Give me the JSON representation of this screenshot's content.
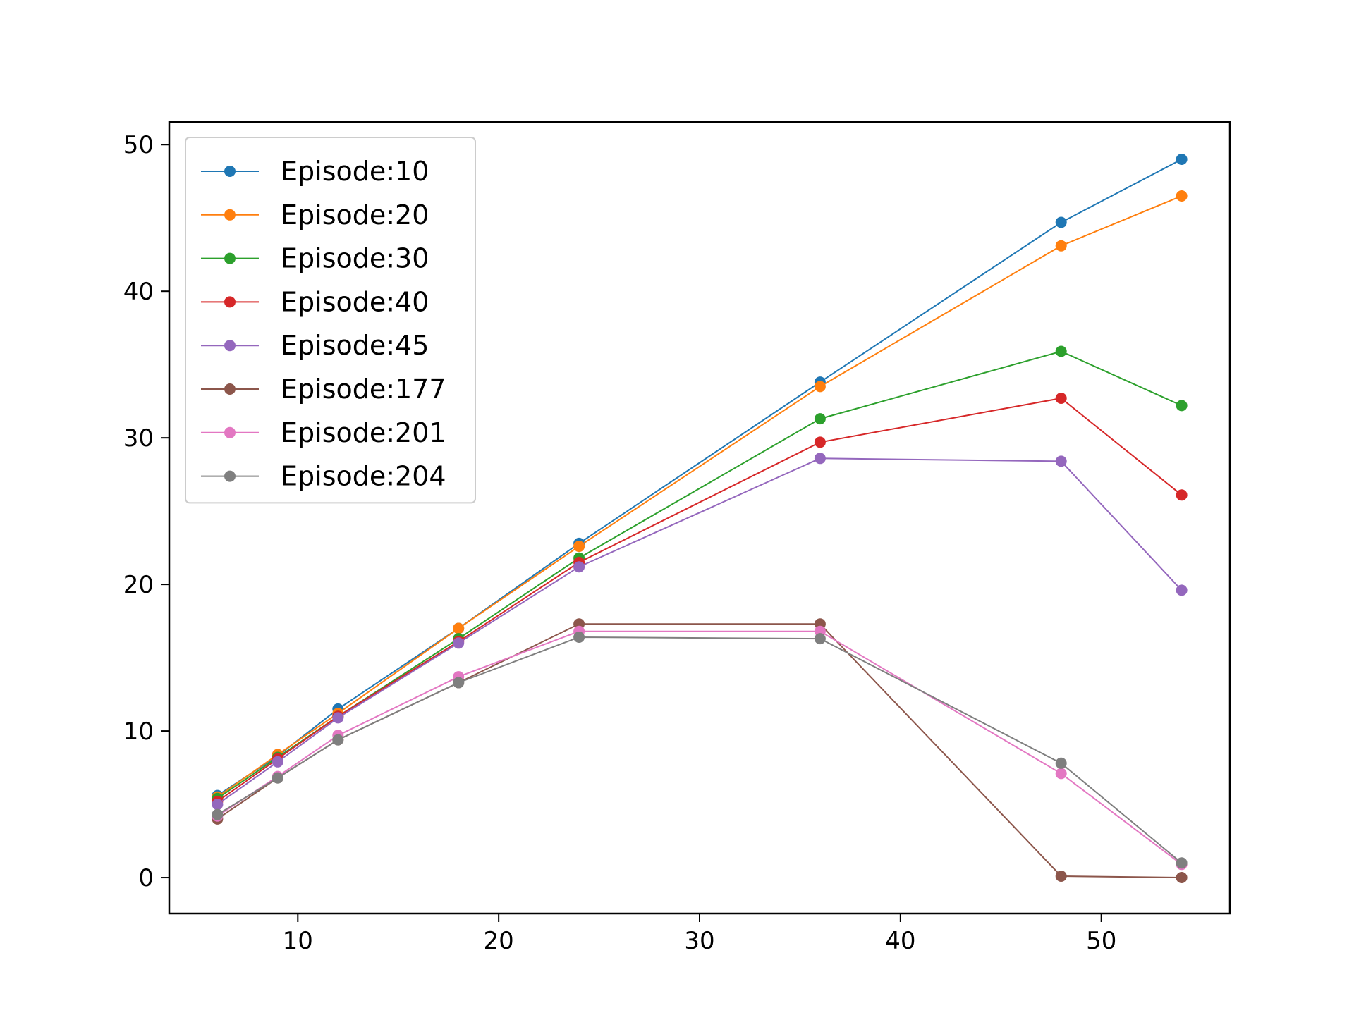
{
  "chart_data": {
    "type": "line",
    "title": "",
    "xlabel": "",
    "ylabel": "",
    "x": [
      6,
      9,
      12,
      18,
      24,
      36,
      48,
      54
    ],
    "xlim": [
      3.6,
      56.4
    ],
    "ylim": [
      -2.45,
      51.55
    ],
    "xticks": [
      10,
      20,
      30,
      40,
      50
    ],
    "yticks": [
      0,
      10,
      20,
      30,
      40,
      50
    ],
    "grid": false,
    "legend_position": "top-left",
    "series": [
      {
        "name": "Episode:10",
        "color": "#1f77b4",
        "values": [
          5.6,
          8.3,
          11.5,
          17.0,
          22.8,
          33.8,
          44.7,
          49.0
        ]
      },
      {
        "name": "Episode:20",
        "color": "#ff7f0e",
        "values": [
          5.5,
          8.4,
          11.2,
          17.0,
          22.6,
          33.5,
          43.1,
          46.5
        ]
      },
      {
        "name": "Episode:30",
        "color": "#2ca02c",
        "values": [
          5.4,
          8.2,
          11.0,
          16.3,
          21.8,
          31.3,
          35.9,
          32.2
        ]
      },
      {
        "name": "Episode:40",
        "color": "#d62728",
        "values": [
          5.2,
          8.1,
          11.0,
          16.1,
          21.5,
          29.7,
          32.7,
          26.1
        ]
      },
      {
        "name": "Episode:45",
        "color": "#9467bd",
        "values": [
          5.0,
          7.9,
          10.9,
          16.0,
          21.2,
          28.6,
          28.4,
          19.6
        ]
      },
      {
        "name": "Episode:177",
        "color": "#8c564b",
        "values": [
          4.0,
          6.8,
          9.4,
          13.3,
          17.3,
          17.3,
          0.1,
          0.0
        ]
      },
      {
        "name": "Episode:201",
        "color": "#e377c2",
        "values": [
          4.2,
          6.9,
          9.7,
          13.7,
          16.8,
          16.8,
          7.1,
          0.9
        ]
      },
      {
        "name": "Episode:204",
        "color": "#7f7f7f",
        "values": [
          4.3,
          6.8,
          9.4,
          13.3,
          16.4,
          16.3,
          7.8,
          1.0
        ]
      }
    ]
  }
}
